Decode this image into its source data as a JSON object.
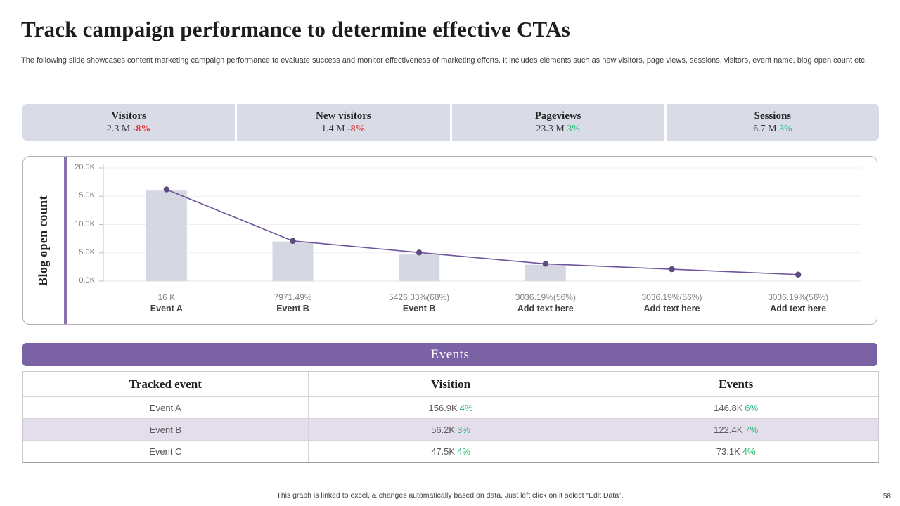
{
  "slide": {
    "title": "Track campaign performance to determine effective CTAs",
    "subtitle": "The following slide showcases content marketing campaign performance to evaluate success and monitor effectiveness of marketing efforts. It includes elements such as new visitors,  page views, sessions, visitors, event name, blog open count etc.",
    "footer_note": "This graph is linked to excel, & changes automatically based on data. Just left click on it select “Edit Data”.",
    "page_number": "58"
  },
  "colors": {
    "kpi_background": "#d9dbe6",
    "negative_delta": "#e0393d",
    "positive_delta": "#27b871",
    "bar_fill": "#d5d8e3",
    "line_stroke": "#6d549b",
    "dot_fill": "#5d4a7e",
    "banner_purple": "#7b62a4",
    "alt_row_purple": "#e4deec",
    "accent_strip": "#8b72ad"
  },
  "kpis": [
    {
      "label": "Visitors",
      "value": "2.3 M",
      "delta": "-8%",
      "trend": "down"
    },
    {
      "label": "New visitors",
      "value": "1.4 M",
      "delta": "-8%",
      "trend": "down"
    },
    {
      "label": "Pageviews",
      "value": "23.3 M",
      "delta": "3%",
      "trend": "up"
    },
    {
      "label": "Sessions",
      "value": "6.7 M",
      "delta": "3%",
      "trend": "up"
    }
  ],
  "chart_data": {
    "type": "bar",
    "subtype": "combo bar+line",
    "ylabel": "Blog open count",
    "ylim": [
      0,
      20000
    ],
    "ytick_labels": [
      "20.0K",
      "15.0K",
      "10.0K",
      "5.0K",
      "0.0K"
    ],
    "grid": true,
    "legend_position": "none",
    "categories": [
      {
        "value_label": "16 K",
        "name": "Event A"
      },
      {
        "value_label": "7971.49%",
        "name": "Event B"
      },
      {
        "value_label": "5426.33%(68%)",
        "name": "Event B"
      },
      {
        "value_label": "3036.19%(56%)",
        "name": "Add text here"
      },
      {
        "value_label": "3036.19%(56%)",
        "name": "Add text here"
      },
      {
        "value_label": "3036.19%(56%)",
        "name": "Add text here"
      }
    ],
    "series": [
      {
        "name": "Blog open count",
        "type": "bar",
        "values": [
          16000,
          7000,
          4700,
          2900,
          null,
          null
        ]
      },
      {
        "name": "Trend",
        "type": "line",
        "values": [
          16200,
          7100,
          5050,
          3050,
          2100,
          1150
        ]
      }
    ]
  },
  "banner": {
    "label": "Events"
  },
  "table": {
    "headers": [
      "Tracked event",
      "Visition",
      "Events"
    ],
    "rows": [
      {
        "event": "Event A",
        "vision": "156.9K",
        "vision_delta": "4%",
        "events": "146.8K",
        "events_delta": "6%"
      },
      {
        "event": "Event B",
        "vision": "56.2K",
        "vision_delta": "3%",
        "events": "122.4K",
        "events_delta": "7%"
      },
      {
        "event": "Event C",
        "vision": "47.5K",
        "vision_delta": "4%",
        "events": "73.1K",
        "events_delta": "4%"
      }
    ]
  }
}
